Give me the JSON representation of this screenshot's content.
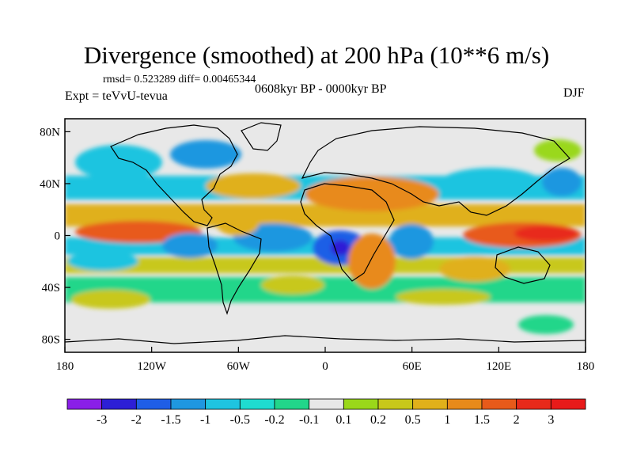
{
  "header": {
    "title": "Divergence (smoothed) at 200 hPa (10**6 m/s)",
    "stats": "rmsd= 0.523289 diff= 0.00465344",
    "experiment": "Expt = teVvU-tevua",
    "period": "0608kyr BP - 0000kyr BP",
    "season": "DJF"
  },
  "axes": {
    "lat_labels": [
      "80N",
      "40N",
      "0",
      "40S",
      "80S"
    ],
    "lat_values": [
      80,
      40,
      0,
      -40,
      -80
    ],
    "lon_labels": [
      "180",
      "120W",
      "60W",
      "0",
      "60E",
      "120E",
      "180"
    ],
    "lon_values": [
      -180,
      -120,
      -60,
      0,
      60,
      120,
      180
    ]
  },
  "colorbar": {
    "labels": [
      "-3",
      "-2",
      "-1.5",
      "-1",
      "-0.5",
      "-0.2",
      "-0.1",
      "0.1",
      "0.2",
      "0.5",
      "1",
      "1.5",
      "2",
      "3"
    ],
    "colors": [
      "#8a1fe8",
      "#2d1fd6",
      "#1f5ee6",
      "#1f97e0",
      "#1fc4e0",
      "#1fdcd0",
      "#22d68a",
      "#e8e8e8",
      "#9ad81a",
      "#c8c81a",
      "#e0b01a",
      "#e88a1a",
      "#e85a1a",
      "#e82a1a",
      "#e81a1a"
    ]
  },
  "colors": {
    "background": "#ffffff",
    "land_neutral": "#e8e8e8",
    "coast": "#000000"
  }
}
